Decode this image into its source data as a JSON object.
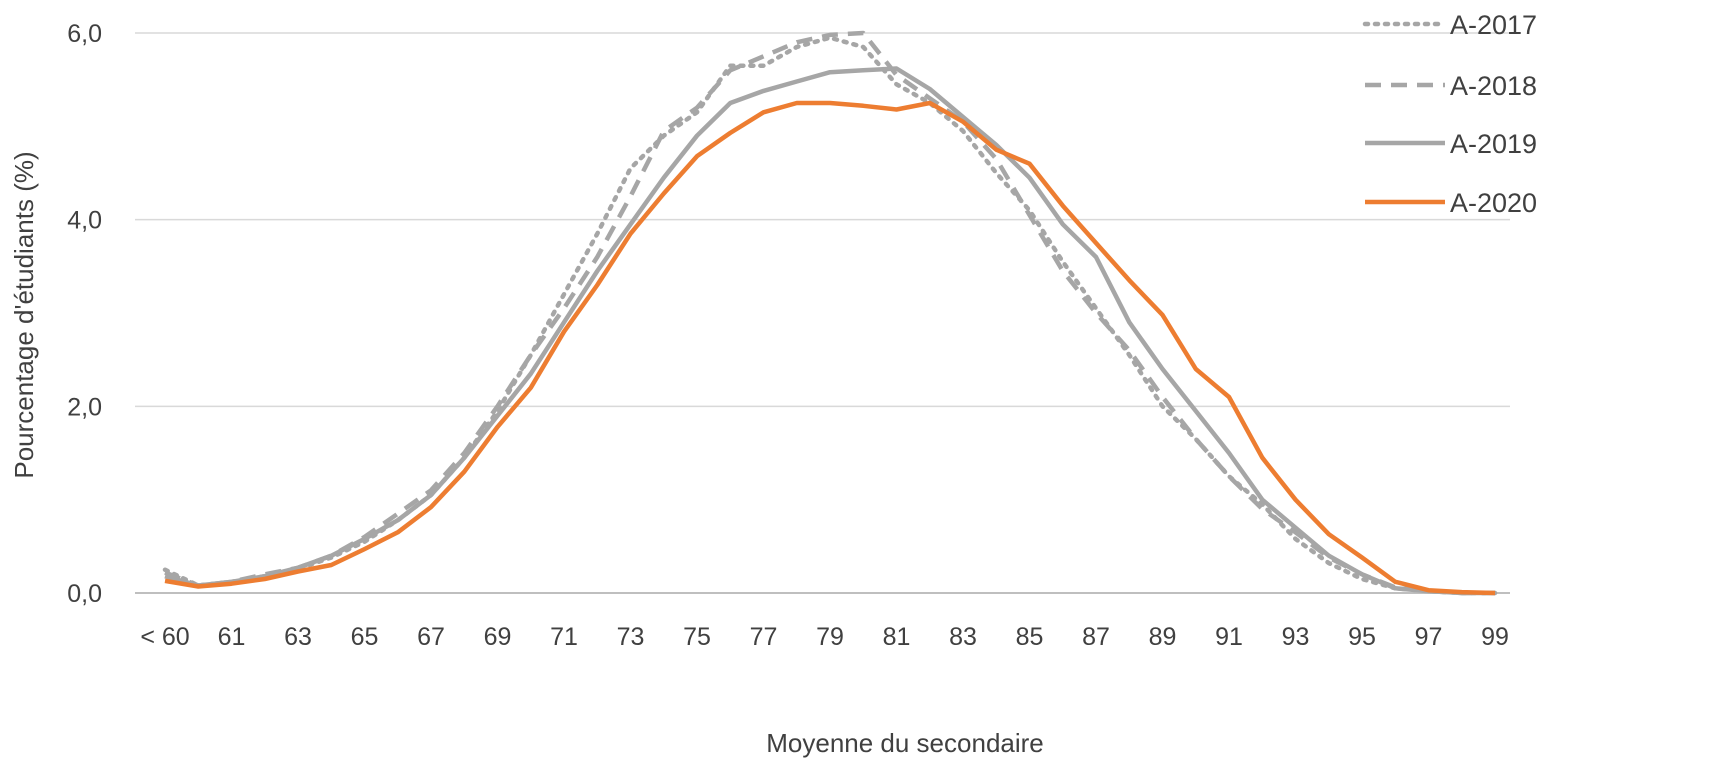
{
  "chart_data": {
    "type": "line",
    "title": "",
    "xlabel": "Moyenne du secondaire",
    "ylabel": "Pourcentage d'étudiants (%)",
    "ylim": [
      0,
      6
    ],
    "yticks": [
      "0,0",
      "2,0",
      "4,0",
      "6,0"
    ],
    "xtick_labels": [
      "< 60",
      "61",
      "63",
      "65",
      "67",
      "69",
      "71",
      "73",
      "75",
      "77",
      "79",
      "81",
      "83",
      "85",
      "87",
      "89",
      "91",
      "93",
      "95",
      "97",
      "99"
    ],
    "grid": true,
    "legend_position": "top-right",
    "categories": [
      "< 60",
      "60",
      "61",
      "62",
      "63",
      "64",
      "65",
      "66",
      "67",
      "68",
      "69",
      "70",
      "71",
      "72",
      "73",
      "74",
      "75",
      "76",
      "77",
      "78",
      "79",
      "80",
      "81",
      "82",
      "83",
      "84",
      "85",
      "86",
      "87",
      "88",
      "89",
      "90",
      "91",
      "92",
      "93",
      "94",
      "95",
      "96",
      "97",
      "98",
      "99"
    ],
    "series": [
      {
        "name": "A-2017",
        "color": "#a6a6a6",
        "style": "dotted",
        "values": [
          0.25,
          0.08,
          0.12,
          0.18,
          0.26,
          0.38,
          0.55,
          0.78,
          1.05,
          1.45,
          1.95,
          2.55,
          3.2,
          3.85,
          4.55,
          4.9,
          5.15,
          5.65,
          5.65,
          5.85,
          5.95,
          5.85,
          5.45,
          5.25,
          4.95,
          4.5,
          4.1,
          3.55,
          3.05,
          2.55,
          2.0,
          1.65,
          1.25,
          0.95,
          0.58,
          0.32,
          0.15,
          0.05,
          0.02,
          0.0,
          0.0
        ]
      },
      {
        "name": "A-2018",
        "color": "#a6a6a6",
        "style": "dashed",
        "values": [
          0.22,
          0.08,
          0.12,
          0.2,
          0.27,
          0.4,
          0.6,
          0.85,
          1.1,
          1.5,
          2.0,
          2.55,
          3.05,
          3.6,
          4.25,
          4.95,
          5.2,
          5.6,
          5.75,
          5.9,
          5.98,
          6.0,
          5.55,
          5.3,
          5.05,
          4.65,
          4.05,
          3.45,
          3.0,
          2.6,
          2.1,
          1.65,
          1.25,
          0.9,
          0.65,
          0.38,
          0.2,
          0.06,
          0.02,
          0.0,
          0.0
        ]
      },
      {
        "name": "A-2019",
        "color": "#a6a6a6",
        "style": "solid",
        "values": [
          0.18,
          0.08,
          0.12,
          0.18,
          0.27,
          0.4,
          0.58,
          0.78,
          1.05,
          1.45,
          1.9,
          2.35,
          2.9,
          3.45,
          3.95,
          4.45,
          4.9,
          5.25,
          5.38,
          5.48,
          5.58,
          5.6,
          5.62,
          5.4,
          5.1,
          4.8,
          4.45,
          3.95,
          3.6,
          2.9,
          2.4,
          1.95,
          1.5,
          1.0,
          0.7,
          0.4,
          0.2,
          0.05,
          0.02,
          0.0,
          0.0
        ]
      },
      {
        "name": "A-2020",
        "color": "#ed7d31",
        "style": "solid",
        "values": [
          0.13,
          0.07,
          0.1,
          0.15,
          0.23,
          0.3,
          0.47,
          0.65,
          0.92,
          1.3,
          1.78,
          2.2,
          2.8,
          3.3,
          3.85,
          4.28,
          4.68,
          4.93,
          5.15,
          5.25,
          5.25,
          5.22,
          5.18,
          5.25,
          5.05,
          4.75,
          4.6,
          4.15,
          3.75,
          3.35,
          2.98,
          2.4,
          2.1,
          1.45,
          1.0,
          0.63,
          0.38,
          0.12,
          0.03,
          0.01,
          0.0
        ]
      }
    ]
  }
}
